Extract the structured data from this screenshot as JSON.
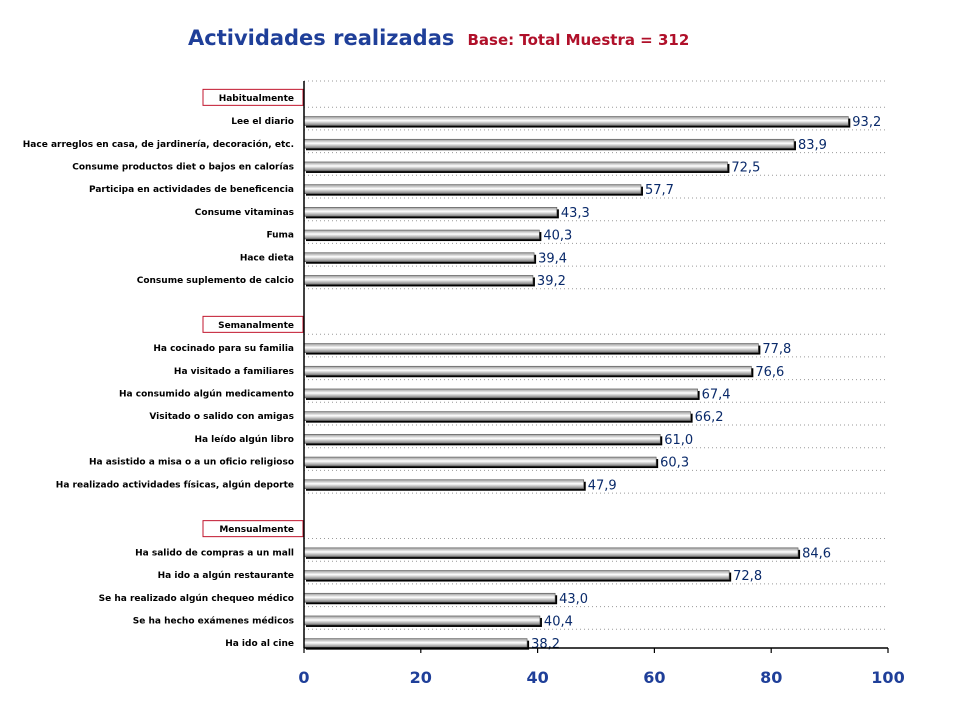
{
  "title": "Actividades realizadas",
  "subtitle": "Base: Total Muestra = 312",
  "chart_data": {
    "type": "bar",
    "orientation": "horizontal",
    "xlim": [
      0,
      100
    ],
    "x_ticks": [
      "0",
      "20",
      "40",
      "60",
      "80",
      "100"
    ],
    "grid": "horizontal dotted",
    "groups": [
      {
        "label": "Habitualmente",
        "categories": [
          "Lee el diario",
          "Hace arreglos en casa, de jardinería, decoración, etc.",
          "Consume productos diet o bajos en calorías",
          "Participa en actividades de beneficencia",
          "Consume vitaminas",
          "Fuma",
          "Hace dieta",
          "Consume suplemento de calcio"
        ],
        "values": [
          93.2,
          83.9,
          72.5,
          57.7,
          43.3,
          40.3,
          39.4,
          39.2
        ],
        "value_labels": [
          "93,2",
          "83,9",
          "72,5",
          "57,7",
          "43,3",
          "40,3",
          "39,4",
          "39,2"
        ]
      },
      {
        "label": "Semanalmente",
        "categories": [
          "Ha cocinado para su familia",
          "Ha visitado a familiares",
          "Ha consumido algún medicamento",
          "Visitado o salido con amigas",
          "Ha leído algún libro",
          "Ha asistido a misa o a un oficio religioso",
          "Ha realizado actividades físicas, algún deporte"
        ],
        "values": [
          77.8,
          76.6,
          67.4,
          66.2,
          61.0,
          60.3,
          47.9
        ],
        "value_labels": [
          "77,8",
          "76,6",
          "67,4",
          "66,2",
          "61,0",
          "60,3",
          "47,9"
        ]
      },
      {
        "label": "Mensualmente",
        "categories": [
          "Ha salido de compras a un mall",
          "Ha ido a algún restaurante",
          "Se ha realizado algún chequeo médico",
          "Se ha hecho exámenes médicos",
          "Ha ido al cine"
        ],
        "values": [
          84.6,
          72.8,
          43.0,
          40.4,
          38.2
        ],
        "value_labels": [
          "84,6",
          "72,8",
          "43,0",
          "40,4",
          "38,2"
        ]
      }
    ],
    "colors": {
      "bar_light": "#ffffff",
      "bar_dark": "#8a8a8a",
      "shadow": "#000000",
      "tick_label": "#1f3f99",
      "value_label": "#0a2a6a",
      "group_box": "#c0142c"
    }
  }
}
